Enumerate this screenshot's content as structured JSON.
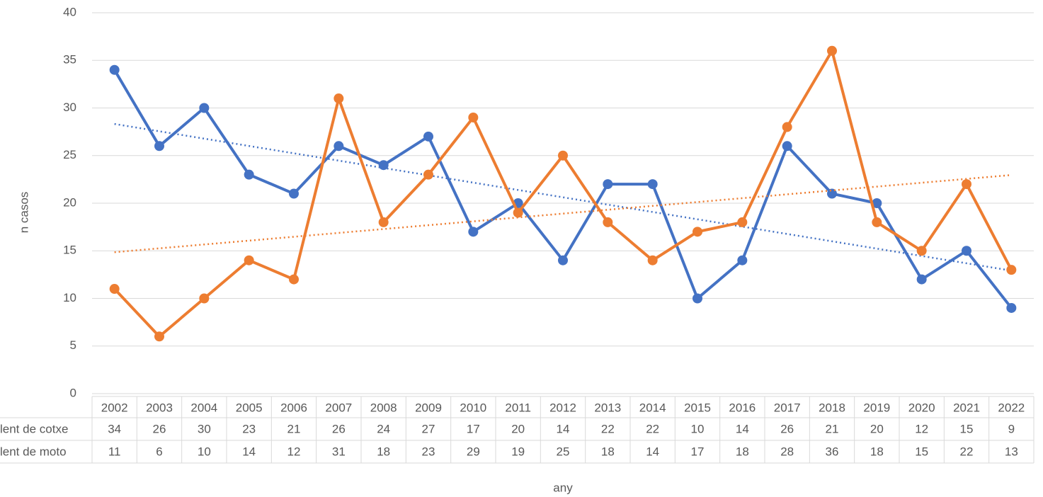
{
  "chart_data": {
    "type": "line",
    "x_label": "any",
    "y_label": "n casos",
    "categories": [
      "2002",
      "2003",
      "2004",
      "2005",
      "2006",
      "2007",
      "2008",
      "2009",
      "2010",
      "2011",
      "2012",
      "2013",
      "2014",
      "2015",
      "2016",
      "2017",
      "2018",
      "2019",
      "2020",
      "2021",
      "2022"
    ],
    "series": [
      {
        "name": "lent de cotxe",
        "color": "#4472c4",
        "values": [
          34,
          26,
          30,
          23,
          21,
          26,
          24,
          27,
          17,
          20,
          14,
          22,
          22,
          10,
          14,
          26,
          21,
          20,
          12,
          15,
          9
        ]
      },
      {
        "name": "lent de moto",
        "color": "#ed7d31",
        "values": [
          11,
          6,
          10,
          14,
          12,
          31,
          18,
          23,
          29,
          19,
          25,
          18,
          14,
          17,
          18,
          28,
          36,
          18,
          15,
          22,
          13
        ]
      }
    ],
    "ylim": [
      0,
      40
    ],
    "yticks": [
      0,
      5,
      10,
      15,
      20,
      25,
      30,
      35,
      40
    ],
    "grid": true,
    "trendline": true,
    "data_table": true
  }
}
